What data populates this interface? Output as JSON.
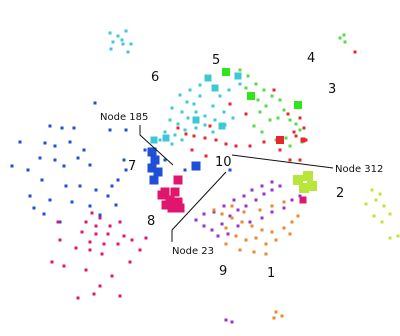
{
  "colors": {
    "cyan": "#3cc8d6",
    "light_green": "#57d94a",
    "green": "#2ee619",
    "lime": "#b9e63a",
    "red": "#e8242c",
    "blue": "#1f4fd6",
    "magenta": "#e0156e",
    "purple": "#9b2fd0",
    "orange": "#e8892c",
    "label": "#111111"
  },
  "cluster_labels": [
    "1",
    "2",
    "3",
    "4",
    "5",
    "6",
    "7",
    "8",
    "9",
    "10"
  ],
  "callouts": {
    "node_185": "Node 185",
    "node_312": "Node 312",
    "node_23": "Node 23"
  },
  "legend_icons": [
    "square-node-icon"
  ]
}
